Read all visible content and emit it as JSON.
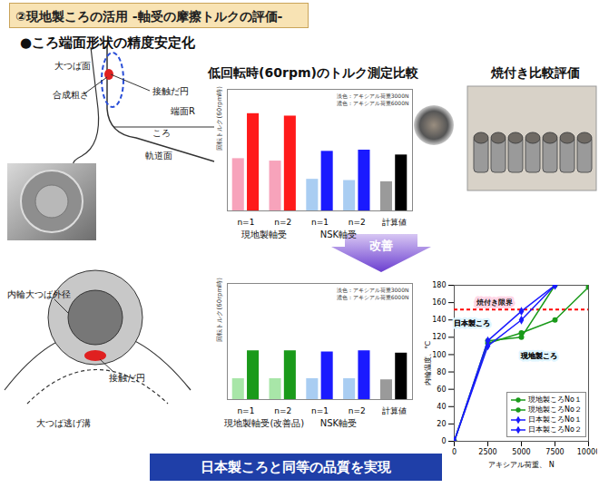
{
  "header": {
    "title": "②現地製ころの活用 -軸受の摩擦トルクの評価-",
    "bullet": "●ころ端面形状の精度安定化"
  },
  "diagram_top": {
    "labels": [
      "大つば面",
      "合成粗さ",
      "接触だ円",
      "端面R",
      "ころ",
      "軌道面"
    ]
  },
  "diagram_bottom": {
    "labels": [
      "内輪大つば外径",
      "接触だ円",
      "大つば逃げ溝"
    ]
  },
  "photo_title": "焼付き比較評価",
  "arrow_label": "改善",
  "footer": "日本製ころと同等の品質を実現",
  "chart_data": [
    {
      "type": "bar",
      "title": "低回転時(60rpm)のトルク測定比較",
      "y_label": "回転トルク(60rpm時)",
      "categories": [
        "n=1",
        "n=2",
        "n=1",
        "n=2",
        "計算値"
      ],
      "group_labels": [
        "現地製軸受",
        "現地製軸受",
        "NSK軸受",
        "NSK軸受",
        null
      ],
      "series": [
        {
          "name": "淡色：アキシアル荷重3000N",
          "colors": [
            "#f7a3bb",
            "#f7a3bb",
            "#a9cdf2",
            "#a9cdf2",
            "#9a9a9a"
          ],
          "values": [
            43,
            41,
            26,
            25,
            24
          ]
        },
        {
          "name": "濃色：アキシアル荷重6000N",
          "colors": [
            "#ff1a1a",
            "#ff1a1a",
            "#1a1aff",
            "#1a1aff",
            "#000000"
          ],
          "values": [
            80,
            78,
            49,
            50,
            46
          ]
        }
      ],
      "ylim": [
        0,
        100
      ],
      "tick_labels": "x",
      "legend": "top-right"
    },
    {
      "type": "bar",
      "y_label": "回転トルク(60rpm時)",
      "categories": [
        "n=1",
        "n=2",
        "n=1",
        "n=2",
        "計算値"
      ],
      "group_labels": [
        "現地製軸受(改善品)",
        "現地製軸受(改善品)",
        "NSK軸受",
        "NSK軸受",
        null
      ],
      "series": [
        {
          "name": "淡色：アキシアル荷重3000N",
          "colors": [
            "#a8e6a8",
            "#a8e6a8",
            "#a9cdf2",
            "#a9cdf2",
            "#9a9a9a"
          ],
          "values": [
            18,
            18,
            18,
            18,
            17
          ]
        },
        {
          "name": "濃色：アキシアル荷重6000N",
          "colors": [
            "#1a9a1a",
            "#1a9a1a",
            "#1a1aff",
            "#1a1aff",
            "#000000"
          ],
          "values": [
            42,
            42,
            41,
            42,
            40
          ]
        }
      ],
      "ylim": [
        0,
        100
      ],
      "tick_labels": "x",
      "legend": "top-right"
    },
    {
      "type": "line",
      "x_label": "アキシアル荷重、 N",
      "y_label": "内輪温度、℃",
      "x": [
        0,
        2500,
        5000,
        7500,
        10000
      ],
      "series": [
        {
          "name": "現地製ころNo１",
          "color": "#1a9a1a",
          "marker": "circle",
          "values": [
            0,
            113,
            125,
            140,
            178
          ]
        },
        {
          "name": "現地製ころNo２",
          "color": "#1a9a1a",
          "marker": "circle",
          "values": [
            0,
            116,
            120,
            180,
            null
          ]
        },
        {
          "name": "日本製ころNo１",
          "color": "#1a1aff",
          "marker": "diamond",
          "values": [
            0,
            116,
            150,
            180,
            null
          ]
        },
        {
          "name": "日本製ころNo２",
          "color": "#1a1aff",
          "marker": "diamond",
          "values": [
            0,
            110,
            140,
            180,
            null
          ]
        }
      ],
      "xlim": [
        0,
        10000
      ],
      "xticks": [
        0,
        2500,
        5000,
        7500,
        10000
      ],
      "ylim": [
        0,
        180
      ],
      "yticks": [
        0,
        20,
        40,
        60,
        80,
        100,
        120,
        140,
        160,
        180
      ],
      "reference_line": {
        "value": 152,
        "label": "焼付き限界",
        "color": "#ff0000",
        "line_style": "dashed"
      },
      "annotations": [
        {
          "text": "日本製ころ",
          "x": 1300,
          "y": 136
        },
        {
          "text": "現地製ころ",
          "x": 6300,
          "y": 98
        }
      ],
      "legend": "bottom-right"
    }
  ]
}
